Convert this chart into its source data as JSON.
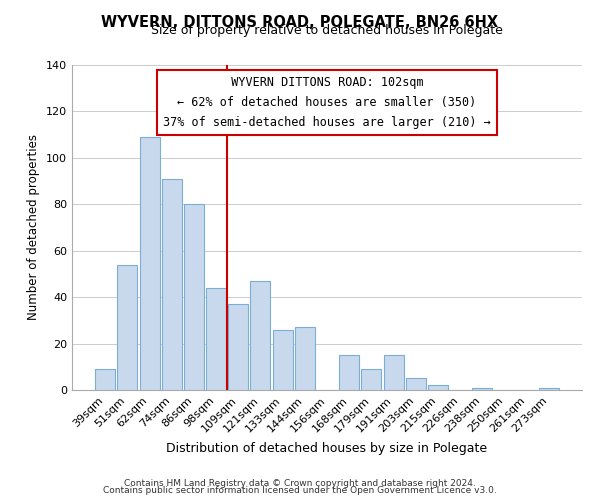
{
  "title": "WYVERN, DITTONS ROAD, POLEGATE, BN26 6HX",
  "subtitle": "Size of property relative to detached houses in Polegate",
  "xlabel": "Distribution of detached houses by size in Polegate",
  "ylabel": "Number of detached properties",
  "bar_labels": [
    "39sqm",
    "51sqm",
    "62sqm",
    "74sqm",
    "86sqm",
    "98sqm",
    "109sqm",
    "121sqm",
    "133sqm",
    "144sqm",
    "156sqm",
    "168sqm",
    "179sqm",
    "191sqm",
    "203sqm",
    "215sqm",
    "226sqm",
    "238sqm",
    "250sqm",
    "261sqm",
    "273sqm"
  ],
  "bar_heights": [
    9,
    54,
    109,
    91,
    80,
    44,
    37,
    47,
    26,
    27,
    0,
    15,
    9,
    15,
    5,
    2,
    0,
    1,
    0,
    0,
    1
  ],
  "bar_color": "#c8d9ee",
  "bar_edge_color": "#7aaed4",
  "vline_x": 5.5,
  "vline_color": "#cc0000",
  "annotation_title": "WYVERN DITTONS ROAD: 102sqm",
  "annotation_line1": "← 62% of detached houses are smaller (350)",
  "annotation_line2": "37% of semi-detached houses are larger (210) →",
  "annotation_box_color": "#ffffff",
  "annotation_box_edge": "#cc0000",
  "ylim": [
    0,
    140
  ],
  "yticks": [
    0,
    20,
    40,
    60,
    80,
    100,
    120,
    140
  ],
  "footer1": "Contains HM Land Registry data © Crown copyright and database right 2024.",
  "footer2": "Contains public sector information licensed under the Open Government Licence v3.0."
}
